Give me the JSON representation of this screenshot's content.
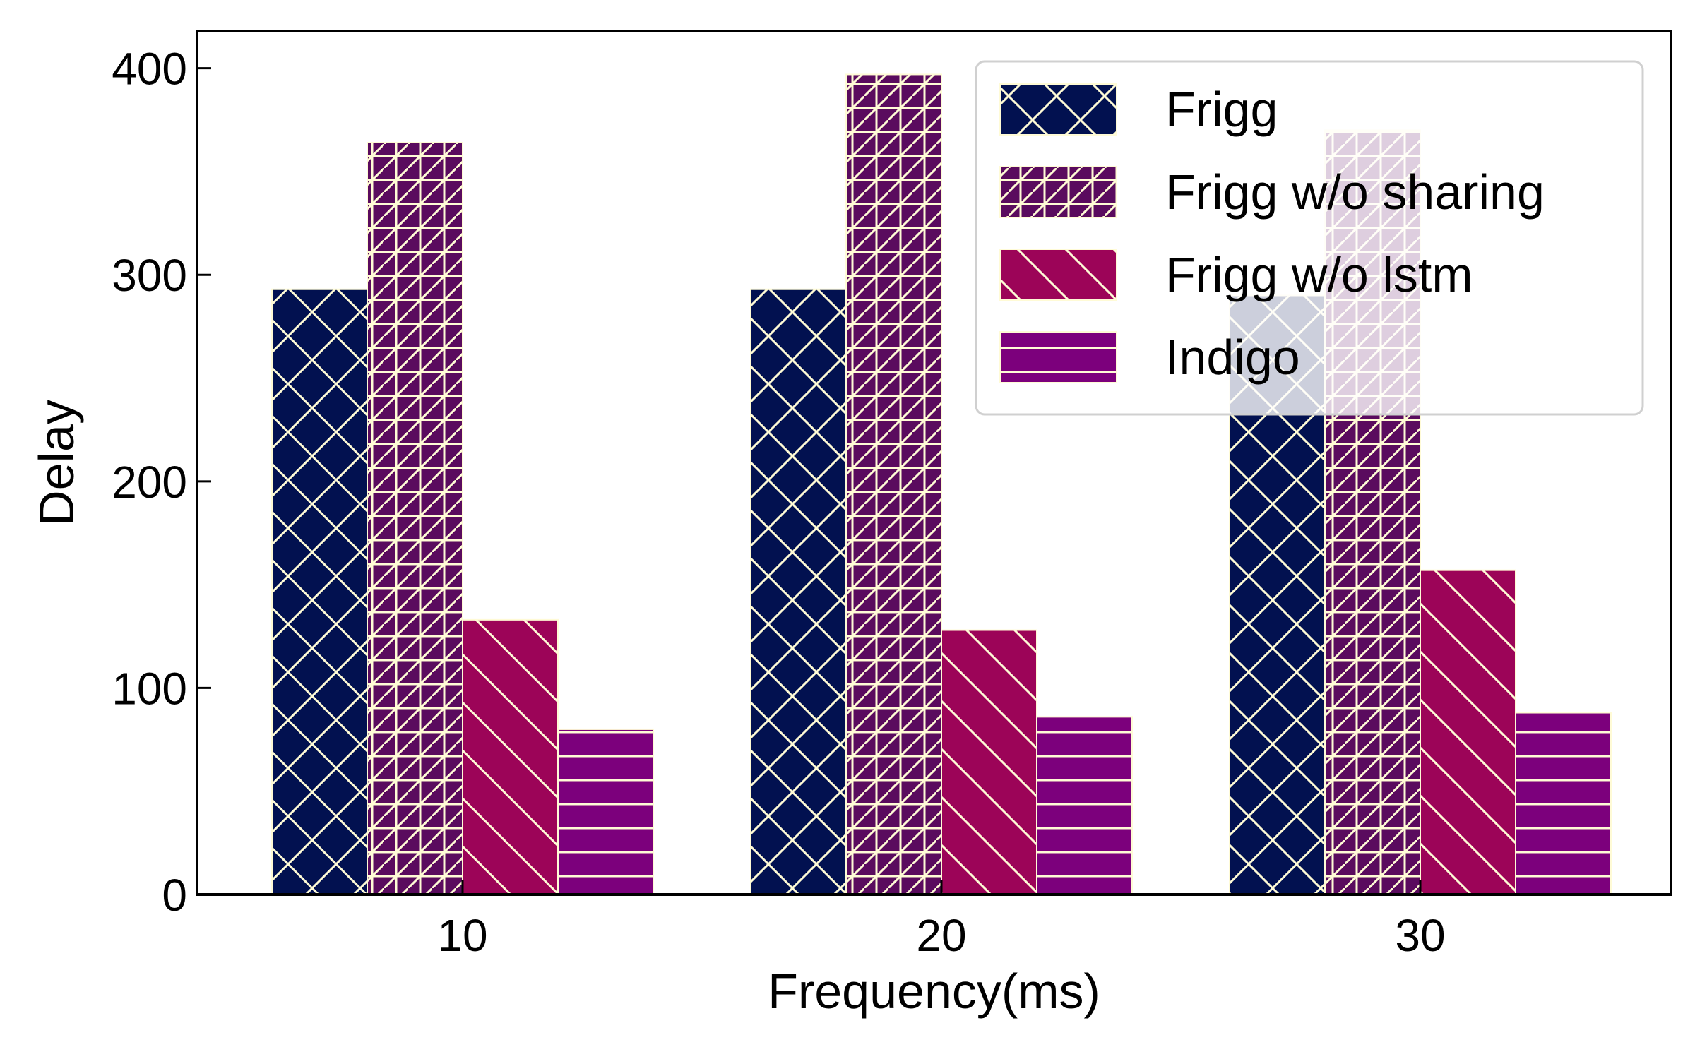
{
  "chart_data": {
    "type": "bar",
    "title": "",
    "xlabel": "Frequency(ms)",
    "ylabel": "Delay",
    "categories": [
      "10",
      "20",
      "30"
    ],
    "ylim": [
      0,
      418
    ],
    "yticks": [
      "0",
      "100",
      "200",
      "300",
      "400"
    ],
    "grid": false,
    "legend_position": "top-right",
    "series": [
      {
        "name": "Frigg",
        "values": [
          293,
          293,
          290
        ],
        "color": "#021150",
        "hatch": "x"
      },
      {
        "name": "Frigg w/o sharing",
        "values": [
          364,
          397,
          370
        ],
        "color": "#5a0b5e",
        "hatch": "grid-diagonal"
      },
      {
        "name": "Frigg w/o lstm",
        "values": [
          133,
          128,
          157
        ],
        "color": "#9c0458",
        "hatch": "backslash"
      },
      {
        "name": "Indigo",
        "values": [
          80,
          86,
          88
        ],
        "color": "#7c007c",
        "hatch": "horizontal"
      }
    ],
    "hatch_color": "#fffbd6"
  }
}
